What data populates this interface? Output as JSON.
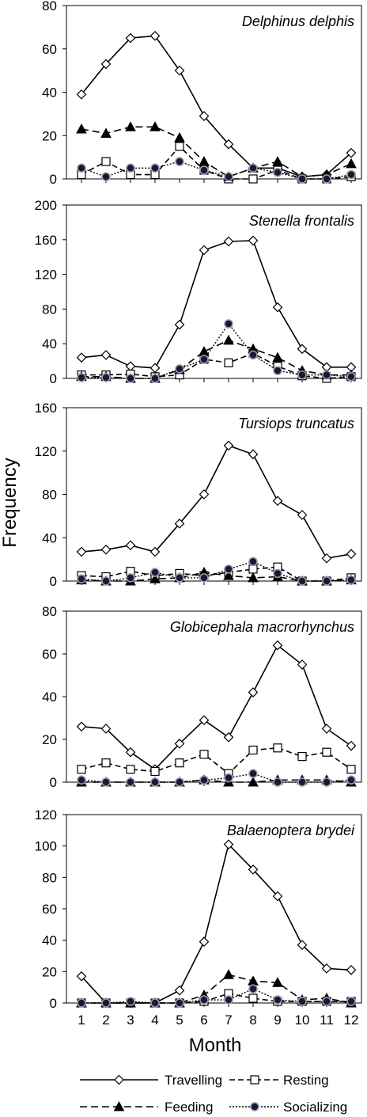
{
  "chart_data": [
    {
      "type": "line",
      "title": "Delphinus delphis",
      "categories": [
        "1",
        "2",
        "3",
        "4",
        "5",
        "6",
        "7",
        "8",
        "9",
        "10",
        "11",
        "12"
      ],
      "ylim": [
        0,
        80
      ],
      "yticks": [
        0,
        20,
        40,
        60,
        80
      ],
      "series": [
        {
          "name": "Travelling",
          "values": [
            39,
            53,
            65,
            66,
            50,
            29,
            16,
            5,
            5,
            1,
            2,
            12
          ]
        },
        {
          "name": "Resting",
          "values": [
            2,
            8,
            2,
            2,
            15,
            4,
            0,
            0,
            4,
            0,
            0,
            1
          ]
        },
        {
          "name": "Feeding",
          "values": [
            23,
            21,
            24,
            24,
            19,
            8,
            1,
            5,
            8,
            1,
            2,
            7
          ]
        },
        {
          "name": "Socializing",
          "values": [
            5,
            1,
            5,
            5,
            8,
            4,
            1,
            5,
            3,
            0,
            0,
            2
          ]
        }
      ]
    },
    {
      "type": "line",
      "title": "Stenella frontalis",
      "categories": [
        "1",
        "2",
        "3",
        "4",
        "5",
        "6",
        "7",
        "8",
        "9",
        "10",
        "11",
        "12"
      ],
      "ylim": [
        0,
        200
      ],
      "yticks": [
        0,
        40,
        80,
        120,
        160,
        200
      ],
      "series": [
        {
          "name": "Travelling",
          "values": [
            24,
            27,
            14,
            12,
            62,
            148,
            158,
            159,
            82,
            34,
            13,
            13
          ]
        },
        {
          "name": "Resting",
          "values": [
            4,
            4,
            5,
            2,
            4,
            22,
            18,
            29,
            14,
            3,
            0,
            2
          ]
        },
        {
          "name": "Feeding",
          "values": [
            2,
            2,
            0,
            0,
            10,
            31,
            44,
            34,
            24,
            9,
            4,
            4
          ]
        },
        {
          "name": "Socializing",
          "values": [
            1,
            1,
            0,
            0,
            11,
            22,
            63,
            27,
            9,
            4,
            4,
            2
          ]
        }
      ]
    },
    {
      "type": "line",
      "title": "Tursiops truncatus",
      "categories": [
        "1",
        "2",
        "3",
        "4",
        "5",
        "6",
        "7",
        "8",
        "9",
        "10",
        "11",
        "12"
      ],
      "ylim": [
        0,
        160
      ],
      "yticks": [
        0,
        40,
        80,
        120,
        160
      ],
      "series": [
        {
          "name": "Travelling",
          "values": [
            27,
            29,
            33,
            27,
            53,
            80,
            125,
            117,
            74,
            61,
            21,
            25
          ]
        },
        {
          "name": "Resting",
          "values": [
            5,
            4,
            9,
            5,
            7,
            5,
            8,
            11,
            13,
            0,
            0,
            3
          ]
        },
        {
          "name": "Feeding",
          "values": [
            1,
            0,
            0,
            2,
            3,
            8,
            5,
            3,
            4,
            0,
            0,
            1
          ]
        },
        {
          "name": "Socializing",
          "values": [
            2,
            0,
            3,
            8,
            3,
            3,
            11,
            18,
            7,
            0,
            0,
            1
          ]
        }
      ]
    },
    {
      "type": "line",
      "title": "Globicephala macrorhynchus",
      "categories": [
        "1",
        "2",
        "3",
        "4",
        "5",
        "6",
        "7",
        "8",
        "9",
        "10",
        "11",
        "12"
      ],
      "ylim": [
        0,
        80
      ],
      "yticks": [
        0,
        20,
        40,
        60,
        80
      ],
      "series": [
        {
          "name": "Travelling",
          "values": [
            26,
            25,
            14,
            6,
            18,
            29,
            21,
            42,
            64,
            55,
            25,
            17
          ]
        },
        {
          "name": "Resting",
          "values": [
            6,
            9,
            6,
            5,
            9,
            13,
            4,
            15,
            16,
            12,
            14,
            6
          ]
        },
        {
          "name": "Feeding",
          "values": [
            0,
            0,
            0,
            0,
            0,
            1,
            0,
            0,
            1,
            1,
            1,
            0
          ]
        },
        {
          "name": "Socializing",
          "values": [
            1,
            0,
            0,
            0,
            0,
            1,
            2,
            4,
            0,
            0,
            0,
            1
          ]
        }
      ]
    },
    {
      "type": "line",
      "title": "Balaenoptera brydei",
      "categories": [
        "1",
        "2",
        "3",
        "4",
        "5",
        "6",
        "7",
        "8",
        "9",
        "10",
        "11",
        "12"
      ],
      "ylim": [
        0,
        120
      ],
      "yticks": [
        0,
        20,
        40,
        60,
        80,
        100,
        120
      ],
      "series": [
        {
          "name": "Travelling",
          "values": [
            17,
            0,
            0,
            0,
            8,
            39,
            101,
            85,
            68,
            37,
            22,
            21
          ]
        },
        {
          "name": "Resting",
          "values": [
            0,
            0,
            0,
            0,
            0,
            1,
            6,
            3,
            1,
            1,
            1,
            1
          ]
        },
        {
          "name": "Feeding",
          "values": [
            0,
            0,
            0,
            0,
            0,
            5,
            18,
            14,
            13,
            2,
            3,
            0
          ]
        },
        {
          "name": "Socializing",
          "values": [
            0,
            0,
            1,
            0,
            0,
            2,
            2,
            9,
            2,
            1,
            1,
            1
          ]
        }
      ]
    }
  ],
  "axes": {
    "ylabel": "Frequency",
    "xlabel": "Month"
  },
  "legend": {
    "items": [
      {
        "label": "Travelling",
        "series": "Travelling"
      },
      {
        "label": "Resting",
        "series": "Resting"
      },
      {
        "label": "Feeding",
        "series": "Feeding"
      },
      {
        "label": "Socializing",
        "series": "Socializing"
      }
    ]
  }
}
